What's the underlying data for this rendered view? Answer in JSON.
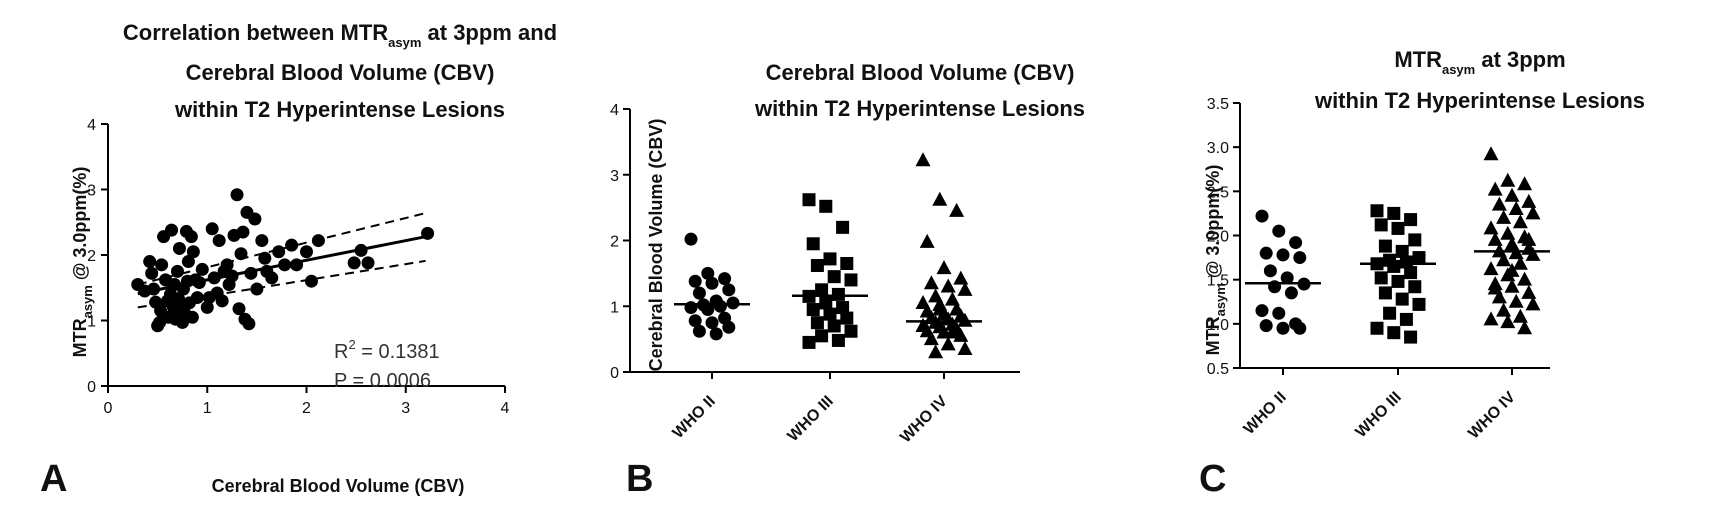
{
  "chart_data": [
    {
      "panel": "A",
      "type": "scatter",
      "title_lines": [
        "Correlation between MTR",
        "Cerebral Blood Volume (CBV)",
        "within T2 Hyperintense Lesions"
      ],
      "title_sub": "asym",
      "title_suffix": " at 3ppm and",
      "xlabel": "Cerebral Blood Volume (CBV)",
      "ylabel_main": "MTR",
      "ylabel_sub": "asym",
      "ylabel_suffix": " @ 3.0ppm(%)",
      "xlim": [
        0,
        4
      ],
      "ylim": [
        0,
        4
      ],
      "xticks": [
        "0",
        "1",
        "2",
        "3",
        "4"
      ],
      "yticks": [
        "0",
        "1",
        "2",
        "3",
        "4"
      ],
      "stats": {
        "r2_label": "R",
        "r2_sup": "2",
        "r2_value": " = 0.1381",
        "p_text": "P = 0.0006"
      },
      "regression": {
        "slope": 0.3,
        "intercept": 1.32,
        "ci_low_end": [
          3.2,
          1.91
        ],
        "ci_high_end": [
          3.2,
          2.64
        ],
        "ci_low_start": [
          0.3,
          1.2
        ],
        "ci_high_start": [
          0.3,
          1.55
        ]
      },
      "points": [
        [
          0.3,
          1.55
        ],
        [
          0.37,
          1.45
        ],
        [
          0.42,
          1.9
        ],
        [
          0.44,
          1.72
        ],
        [
          0.46,
          1.48
        ],
        [
          0.48,
          1.28
        ],
        [
          0.5,
          0.92
        ],
        [
          0.52,
          0.97
        ],
        [
          0.53,
          1.15
        ],
        [
          0.54,
          1.85
        ],
        [
          0.56,
          2.28
        ],
        [
          0.58,
          1.62
        ],
        [
          0.6,
          1.3
        ],
        [
          0.61,
          1.05
        ],
        [
          0.63,
          1.4
        ],
        [
          0.64,
          2.38
        ],
        [
          0.66,
          1.2
        ],
        [
          0.67,
          1.55
        ],
        [
          0.68,
          1.02
        ],
        [
          0.7,
          1.75
        ],
        [
          0.71,
          1.33
        ],
        [
          0.72,
          2.1
        ],
        [
          0.74,
          1.18
        ],
        [
          0.75,
          0.97
        ],
        [
          0.76,
          1.48
        ],
        [
          0.77,
          1.12
        ],
        [
          0.79,
          2.36
        ],
        [
          0.8,
          1.6
        ],
        [
          0.81,
          1.9
        ],
        [
          0.82,
          1.27
        ],
        [
          0.84,
          2.28
        ],
        [
          0.85,
          1.05
        ],
        [
          0.86,
          2.05
        ],
        [
          0.88,
          1.62
        ],
        [
          0.9,
          1.35
        ],
        [
          0.92,
          1.58
        ],
        [
          0.95,
          1.78
        ],
        [
          1.0,
          1.2
        ],
        [
          1.02,
          1.35
        ],
        [
          1.05,
          2.4
        ],
        [
          1.07,
          1.65
        ],
        [
          1.1,
          1.42
        ],
        [
          1.12,
          2.22
        ],
        [
          1.15,
          1.3
        ],
        [
          1.17,
          1.75
        ],
        [
          1.2,
          1.85
        ],
        [
          1.22,
          1.55
        ],
        [
          1.25,
          1.68
        ],
        [
          1.27,
          2.3
        ],
        [
          1.3,
          2.92
        ],
        [
          1.32,
          1.18
        ],
        [
          1.34,
          2.02
        ],
        [
          1.36,
          2.35
        ],
        [
          1.38,
          1.02
        ],
        [
          1.4,
          2.65
        ],
        [
          1.42,
          0.95
        ],
        [
          1.44,
          1.72
        ],
        [
          1.48,
          2.55
        ],
        [
          1.5,
          1.48
        ],
        [
          1.55,
          2.22
        ],
        [
          1.58,
          1.95
        ],
        [
          1.6,
          1.75
        ],
        [
          1.65,
          1.65
        ],
        [
          1.72,
          2.05
        ],
        [
          1.78,
          1.85
        ],
        [
          1.85,
          2.15
        ],
        [
          1.9,
          1.85
        ],
        [
          2.0,
          2.05
        ],
        [
          2.05,
          1.6
        ],
        [
          2.12,
          2.22
        ],
        [
          2.48,
          1.88
        ],
        [
          2.55,
          2.07
        ],
        [
          2.62,
          1.88
        ],
        [
          3.22,
          2.33
        ]
      ]
    },
    {
      "panel": "B",
      "type": "scatter",
      "title_lines": [
        "Cerebral Blood Volume (CBV)",
        "within T2 Hyperintense Lesions"
      ],
      "ylabel": "Cerebral Blood Volume (CBV)",
      "ylim": [
        0,
        4
      ],
      "yticks": [
        "0",
        "1",
        "2",
        "3",
        "4"
      ],
      "categories": [
        "WHO II",
        "WHO III",
        "WHO IV"
      ],
      "markers": [
        "circle",
        "square",
        "triangle"
      ],
      "medians": [
        1.03,
        1.16,
        0.77
      ],
      "groups": [
        [
          2.02,
          1.5,
          1.42,
          1.38,
          1.35,
          1.25,
          1.2,
          1.08,
          1.05,
          1.02,
          1.0,
          0.98,
          0.95,
          0.82,
          0.78,
          0.75,
          0.68,
          0.62,
          0.58
        ],
        [
          2.62,
          2.52,
          2.2,
          1.95,
          1.72,
          1.65,
          1.62,
          1.45,
          1.4,
          1.25,
          1.18,
          1.15,
          1.05,
          0.98,
          0.95,
          0.88,
          0.82,
          0.75,
          0.7,
          0.62,
          0.55,
          0.48,
          0.45
        ],
        [
          3.22,
          2.62,
          2.45,
          1.98,
          1.58,
          1.42,
          1.35,
          1.3,
          1.25,
          1.15,
          1.1,
          1.05,
          1.02,
          0.95,
          0.92,
          0.88,
          0.85,
          0.82,
          0.8,
          0.78,
          0.75,
          0.72,
          0.7,
          0.68,
          0.65,
          0.62,
          0.6,
          0.55,
          0.5,
          0.42,
          0.35,
          0.3,
          0.6,
          0.7,
          0.95
        ]
      ]
    },
    {
      "panel": "C",
      "type": "scatter",
      "title_lines": [
        "MTR",
        "within T2 Hyperintense Lesions"
      ],
      "title_sub": "asym",
      "title_suffix": " at 3ppm",
      "ylabel_main": "MTR",
      "ylabel_sub": "asym",
      "ylabel_suffix": " @ 3.0ppm(%)",
      "ylim": [
        0.5,
        3.5
      ],
      "yticks": [
        "0.5",
        "1.0",
        "1.5",
        "2.0",
        "2.5",
        "3.0",
        "3.5"
      ],
      "categories": [
        "WHO II",
        "WHO III",
        "WHO IV"
      ],
      "markers": [
        "circle",
        "square",
        "triangle"
      ],
      "medians": [
        1.46,
        1.68,
        1.82
      ],
      "groups": [
        [
          2.22,
          2.05,
          1.92,
          1.8,
          1.78,
          1.75,
          1.6,
          1.52,
          1.45,
          1.42,
          1.35,
          1.15,
          1.12,
          1.0,
          0.98,
          0.95,
          0.95
        ],
        [
          2.28,
          2.25,
          2.18,
          2.12,
          2.08,
          1.95,
          1.88,
          1.82,
          1.75,
          1.72,
          1.7,
          1.68,
          1.65,
          1.58,
          1.52,
          1.48,
          1.42,
          1.35,
          1.28,
          1.22,
          1.12,
          1.05,
          0.95,
          0.9,
          0.85
        ],
        [
          2.92,
          2.62,
          2.58,
          2.52,
          2.45,
          2.38,
          2.35,
          2.3,
          2.25,
          2.2,
          2.15,
          2.08,
          2.02,
          1.98,
          1.95,
          1.9,
          1.85,
          1.82,
          1.8,
          1.78,
          1.72,
          1.68,
          1.62,
          1.55,
          1.5,
          1.45,
          1.42,
          1.35,
          1.3,
          1.25,
          1.22,
          1.15,
          1.08,
          1.05,
          1.02,
          0.95,
          1.4,
          1.6,
          1.95
        ]
      ]
    }
  ]
}
